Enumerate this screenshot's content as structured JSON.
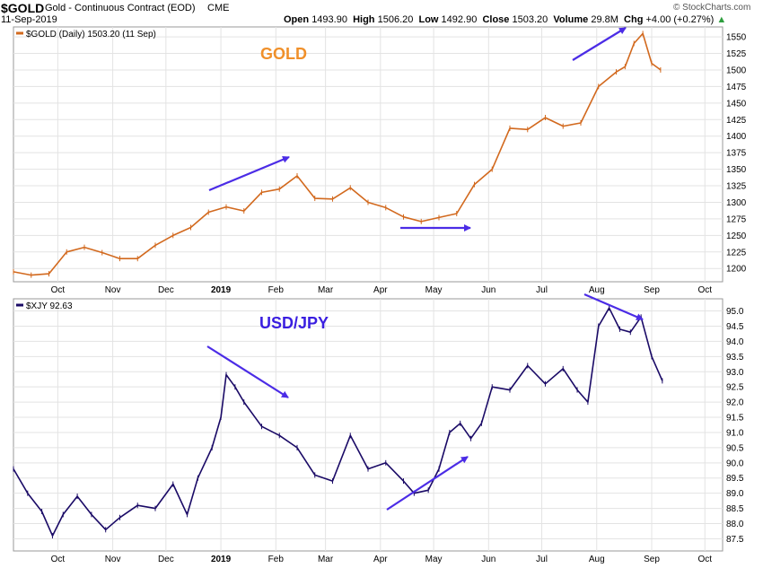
{
  "header": {
    "symbol": "$GOLD",
    "name": "Gold - Continuous Contract (EOD)",
    "exchange": "CME",
    "date": "11-Sep-2019",
    "open_label": "Open",
    "open": "1493.90",
    "high_label": "High",
    "high": "1506.20",
    "low_label": "Low",
    "low": "1492.90",
    "close_label": "Close",
    "close": "1503.20",
    "volume_label": "Volume",
    "volume": "29.8M",
    "chg_label": "Chg",
    "chg": "+4.00 (+0.27%)",
    "watermark": "© StockCharts.com"
  },
  "colors": {
    "gold": "#d2691e",
    "usdjpy": "#1a0a66",
    "arrow": "#4b2ce6",
    "grid": "#e3e3e3"
  },
  "chart_data": [
    {
      "type": "line",
      "legend": "$GOLD (Daily) 1503.20 (11 Sep)",
      "annotation": "GOLD",
      "y_ticks": [
        1200,
        1225,
        1250,
        1275,
        1300,
        1325,
        1350,
        1375,
        1400,
        1425,
        1450,
        1475,
        1500,
        1525,
        1550
      ],
      "ylim": [
        1180,
        1565
      ],
      "x_ticks": [
        "Oct",
        "Nov",
        "Dec",
        "2019",
        "Feb",
        "Mar",
        "Apr",
        "May",
        "Jun",
        "Jul",
        "Aug",
        "Sep",
        "Oct"
      ],
      "x_tick_days": [
        25,
        56,
        86,
        117,
        148,
        176,
        207,
        237,
        268,
        298,
        329,
        360,
        390
      ],
      "xlim": [
        0,
        400
      ],
      "series": [
        {
          "x": [
            0,
            10,
            20,
            30,
            40,
            50,
            60,
            70,
            80,
            90,
            100,
            110,
            120,
            130,
            140,
            150,
            160,
            170,
            180,
            190,
            200,
            210,
            220,
            230,
            240,
            250,
            260,
            270,
            280,
            290,
            300,
            310,
            320,
            330,
            340,
            345,
            350,
            355,
            360,
            365
          ],
          "values": [
            1195,
            1190,
            1192,
            1225,
            1232,
            1224,
            1215,
            1215,
            1235,
            1250,
            1262,
            1285,
            1293,
            1287,
            1315,
            1320,
            1340,
            1306,
            1305,
            1322,
            1300,
            1292,
            1278,
            1271,
            1277,
            1283,
            1327,
            1350,
            1412,
            1410,
            1428,
            1415,
            1420,
            1475,
            1497,
            1505,
            1540,
            1555,
            1510,
            1500
          ]
        }
      ]
    },
    {
      "type": "line",
      "legend": "$XJY 92.63",
      "annotation": "USD/JPY",
      "y_ticks": [
        87.5,
        88.0,
        88.5,
        89.0,
        89.5,
        90.0,
        90.5,
        91.0,
        91.5,
        92.0,
        92.5,
        93.0,
        93.5,
        94.0,
        94.5,
        95.0
      ],
      "ylim": [
        87.1,
        95.4
      ],
      "x_ticks": [
        "Oct",
        "Nov",
        "Dec",
        "2019",
        "Feb",
        "Mar",
        "Apr",
        "May",
        "Jun",
        "Jul",
        "Aug",
        "Sep",
        "Oct"
      ],
      "x_tick_days": [
        25,
        56,
        86,
        117,
        148,
        176,
        207,
        237,
        268,
        298,
        329,
        360,
        390
      ],
      "xlim": [
        0,
        400
      ],
      "series": [
        {
          "x": [
            0,
            8,
            16,
            22,
            28,
            36,
            44,
            52,
            60,
            70,
            80,
            90,
            98,
            104,
            112,
            117,
            120,
            125,
            130,
            140,
            150,
            160,
            170,
            180,
            190,
            200,
            210,
            220,
            226,
            234,
            240,
            246,
            252,
            258,
            264,
            270,
            280,
            290,
            300,
            310,
            318,
            324,
            330,
            336,
            342,
            348,
            354,
            360,
            366
          ],
          "values": [
            89.8,
            89.0,
            88.4,
            87.6,
            88.3,
            88.9,
            88.3,
            87.8,
            88.2,
            88.6,
            88.5,
            89.3,
            88.3,
            89.5,
            90.5,
            91.5,
            92.9,
            92.5,
            92.0,
            91.2,
            90.9,
            90.5,
            89.6,
            89.4,
            90.9,
            89.8,
            90.0,
            89.4,
            89.0,
            89.1,
            89.8,
            91.0,
            91.3,
            90.8,
            91.3,
            92.5,
            92.4,
            93.2,
            92.6,
            93.1,
            92.4,
            92.0,
            94.5,
            95.1,
            94.4,
            94.3,
            94.8,
            93.5,
            92.7
          ]
        }
      ]
    }
  ]
}
